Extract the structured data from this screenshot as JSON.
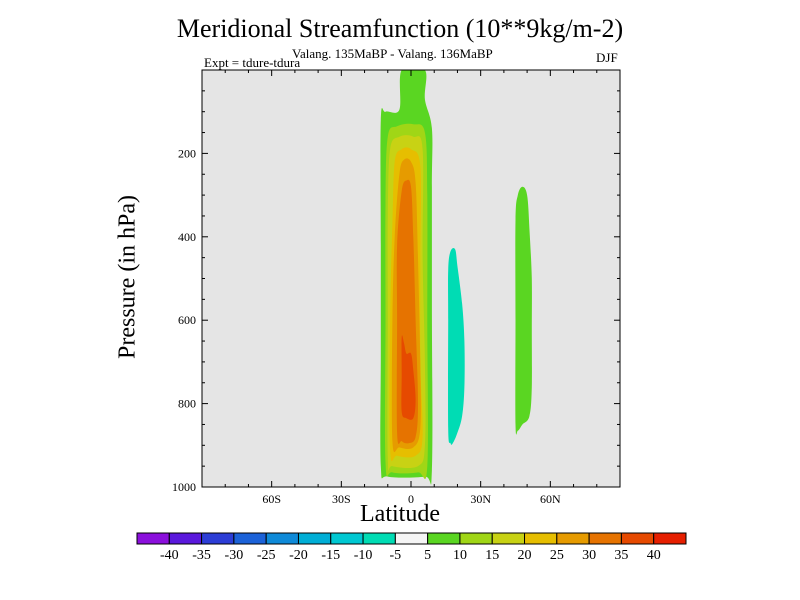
{
  "chart_data": {
    "type": "heatmap",
    "title": "Meridional Streamfunction (10**9kg/m-2)",
    "subtitle": "Valang.  135MaBP - Valang.  136MaBP",
    "left_label": "Expt = tdure-tdura",
    "right_label": "DJF",
    "xlabel": "Latitude",
    "ylabel": "Pressure (in hPa)",
    "xlim": [
      -90,
      90
    ],
    "ylim": [
      1000,
      0
    ],
    "x_ticks": [
      {
        "value": -60,
        "label": "60S"
      },
      {
        "value": -30,
        "label": "30S"
      },
      {
        "value": 0,
        "label": "0"
      },
      {
        "value": 30,
        "label": "30N"
      },
      {
        "value": 60,
        "label": "60N"
      }
    ],
    "y_ticks": [
      {
        "value": 200,
        "label": "200"
      },
      {
        "value": 400,
        "label": "400"
      },
      {
        "value": 600,
        "label": "600"
      },
      {
        "value": 800,
        "label": "800"
      },
      {
        "value": 1000,
        "label": "1000"
      }
    ],
    "background_color": "#e5e5e5",
    "contour_levels": [
      -40,
      -35,
      -30,
      -25,
      -20,
      -15,
      -10,
      -5,
      5,
      10,
      15,
      20,
      25,
      30,
      35,
      40
    ],
    "colorbar_labels": [
      "-40",
      "-35",
      "-30",
      "-25",
      "-20",
      "-15",
      "-10",
      "-5",
      "5",
      "10",
      "15",
      "20",
      "25",
      "30",
      "35",
      "40"
    ],
    "colorbar_colors": [
      "#8b10dc",
      "#5a18dc",
      "#2c3dd6",
      "#1c62d8",
      "#0f8ad8",
      "#00aed6",
      "#00c8d2",
      "#00dcb4",
      "#f5f5f5",
      "#5ad622",
      "#a0d616",
      "#c8d214",
      "#e6be00",
      "#e69b00",
      "#e67300",
      "#e64a00",
      "#e61f00"
    ],
    "regions": [
      {
        "value": 5,
        "color": "#5ad622",
        "points": [
          [
            -13,
            950
          ],
          [
            -13,
            680
          ],
          [
            -13,
            420
          ],
          [
            -13,
            120
          ],
          [
            -11,
            100
          ],
          [
            -5,
            95
          ],
          [
            -4,
            0
          ],
          [
            6,
            0
          ],
          [
            6,
            70
          ],
          [
            9,
            140
          ],
          [
            9,
            280
          ],
          [
            9,
            560
          ],
          [
            9,
            960
          ],
          [
            6,
            975
          ],
          [
            -10,
            975
          ]
        ]
      },
      {
        "value": 10,
        "color": "#a0d616",
        "points": [
          [
            -11,
            940
          ],
          [
            -11,
            600
          ],
          [
            -11,
            320
          ],
          [
            -10,
            160
          ],
          [
            -6,
            135
          ],
          [
            1,
            130
          ],
          [
            6,
            150
          ],
          [
            7,
            300
          ],
          [
            7,
            600
          ],
          [
            7,
            950
          ],
          [
            3,
            965
          ],
          [
            -8,
            965
          ]
        ]
      },
      {
        "value": 15,
        "color": "#c8d214",
        "points": [
          [
            -10,
            930
          ],
          [
            -10,
            600
          ],
          [
            -10,
            350
          ],
          [
            -9,
            190
          ],
          [
            -5,
            160
          ],
          [
            1,
            160
          ],
          [
            5,
            190
          ],
          [
            5,
            450
          ],
          [
            6,
            700
          ],
          [
            6,
            900
          ],
          [
            3,
            950
          ],
          [
            -8,
            950
          ]
        ]
      },
      {
        "value": 20,
        "color": "#e6be00",
        "points": [
          [
            -9,
            910
          ],
          [
            -9,
            600
          ],
          [
            -8,
            370
          ],
          [
            -7,
            220
          ],
          [
            -4,
            190
          ],
          [
            0,
            190
          ],
          [
            4,
            230
          ],
          [
            4,
            450
          ],
          [
            4,
            700
          ],
          [
            5,
            880
          ],
          [
            2,
            925
          ],
          [
            -6,
            925
          ]
        ]
      },
      {
        "value": 25,
        "color": "#e69b00",
        "points": [
          [
            -8,
            890
          ],
          [
            -8,
            600
          ],
          [
            -7,
            400
          ],
          [
            -5,
            250
          ],
          [
            -3,
            215
          ],
          [
            0,
            220
          ],
          [
            2,
            270
          ],
          [
            3,
            450
          ],
          [
            4,
            700
          ],
          [
            4,
            860
          ],
          [
            1,
            905
          ],
          [
            -5,
            905
          ]
        ]
      },
      {
        "value": 30,
        "color": "#e67300",
        "points": [
          [
            -6,
            870
          ],
          [
            -6,
            600
          ],
          [
            -6,
            420
          ],
          [
            -4,
            290
          ],
          [
            -2,
            265
          ],
          [
            0,
            280
          ],
          [
            1,
            400
          ],
          [
            2,
            600
          ],
          [
            3,
            800
          ],
          [
            2,
            880
          ],
          [
            -1,
            895
          ],
          [
            -4,
            890
          ]
        ]
      },
      {
        "value": 35,
        "color": "#e64a00",
        "points": [
          [
            -4,
            820
          ],
          [
            -4,
            730
          ],
          [
            -4,
            640
          ],
          [
            -3,
            655
          ],
          [
            -2,
            680
          ],
          [
            0,
            680
          ],
          [
            1,
            720
          ],
          [
            2,
            790
          ],
          [
            1,
            835
          ],
          [
            -2,
            835
          ]
        ]
      },
      {
        "value": -10,
        "color": "#00dcb4",
        "points": [
          [
            16,
            860
          ],
          [
            16,
            600
          ],
          [
            16,
            480
          ],
          [
            17,
            435
          ],
          [
            19,
            430
          ],
          [
            20,
            470
          ],
          [
            22,
            560
          ],
          [
            23,
            650
          ],
          [
            23,
            760
          ],
          [
            22,
            830
          ],
          [
            20,
            870
          ],
          [
            18,
            895
          ],
          [
            17,
            895
          ]
        ]
      },
      {
        "value": 5,
        "color": "#5ad622",
        "points": [
          [
            45,
            850
          ],
          [
            45,
            600
          ],
          [
            45,
            360
          ],
          [
            46,
            300
          ],
          [
            48,
            280
          ],
          [
            50,
            300
          ],
          [
            51,
            380
          ],
          [
            52,
            500
          ],
          [
            52,
            620
          ],
          [
            52,
            760
          ],
          [
            51,
            830
          ],
          [
            48,
            850
          ],
          [
            46,
            865
          ]
        ]
      }
    ]
  }
}
